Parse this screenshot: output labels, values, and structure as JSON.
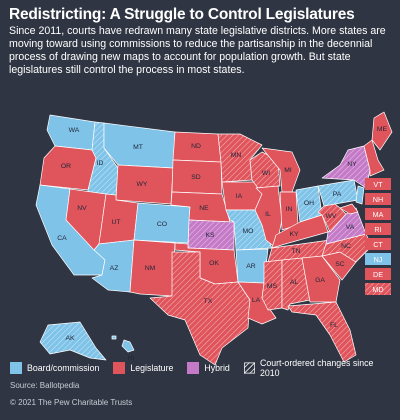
{
  "title": "Redistricting: A Struggle to Control Legislatures",
  "subtitle": "Since 2011, courts have redrawn many state legislative districts. More states are moving toward using commissions to reduce the partisanship in the decennial process of drawing new maps to account for population growth. But state legislatures still control the process in most states.",
  "colors": {
    "board": "#7fc3e8",
    "legislature": "#e0545c",
    "hybrid": "#c47ac7",
    "background": "#2f3542",
    "label": "#22283a"
  },
  "states": {
    "WA": "WA",
    "OR": "OR",
    "CA": "CA",
    "ID": "ID",
    "NV": "NV",
    "MT": "MT",
    "WY": "WY",
    "UT": "UT",
    "AZ": "AZ",
    "CO": "CO",
    "NM": "NM",
    "ND": "ND",
    "SD": "SD",
    "NE": "NE",
    "KS": "KS",
    "OK": "OK",
    "TX": "TX",
    "MN": "MN",
    "IA": "IA",
    "MO": "MO",
    "AR": "AR",
    "LA": "LA",
    "WI": "WI",
    "IL": "IL",
    "MI": "MI",
    "IN": "IN",
    "OH": "OH",
    "KY": "KY",
    "TN": "TN",
    "MS": "MS",
    "AL": "AL",
    "GA": "GA",
    "FL": "FL",
    "SC": "SC",
    "NC": "NC",
    "VA": "VA",
    "WV": "WV",
    "PA": "PA",
    "NY": "NY",
    "ME": "ME",
    "AK": "AK",
    "HI": "HI"
  },
  "side_boxes": [
    "VT",
    "NH",
    "MA",
    "RI",
    "CT",
    "NJ",
    "DE",
    "MD"
  ],
  "legend": {
    "board": "Board/commission",
    "legislature": "Legislature",
    "hybrid": "Hybrid",
    "court": "Court-ordered changes since 2010"
  },
  "source": "Source: Ballotpedia",
  "copyright": "© 2021 The Pew Charitable Trusts"
}
